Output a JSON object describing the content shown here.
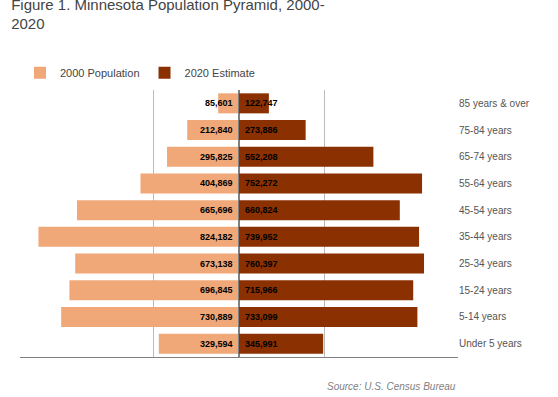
{
  "chart_data": {
    "type": "bar",
    "orientation": "horizontal",
    "title": "Figure 1. Minnesota Population Pyramid, 2000-\n2020",
    "annotations": [
      "Source: U.S. Census Bureau"
    ],
    "categories": [
      "Under 5 years",
      "5-14 years",
      "15-24 years",
      "25-34 years",
      "35-44 years",
      "45-54 years",
      "55-64 years",
      "65-74 years",
      "75-84 years",
      "85 years & over"
    ],
    "series": [
      {
        "name": "2000 Population",
        "color": "#F0A878",
        "values": [
          329594,
          730889,
          696845,
          673138,
          824182,
          665696,
          404869,
          295825,
          212840,
          85601
        ],
        "value_labels": [
          "329,594",
          "730,889",
          "696,845",
          "673,138",
          "824,182",
          "665,696",
          "404,869",
          "295,825",
          "212,840",
          "85,601"
        ]
      },
      {
        "name": "2020 Estimate",
        "color": "#8B3000",
        "values": [
          345991,
          733099,
          715966,
          760397,
          739952,
          660824,
          752272,
          552208,
          273886,
          122747
        ],
        "value_labels": [
          "345,991",
          "733,099",
          "715,966",
          "760,397",
          "739,952",
          "660,824",
          "752,272",
          "552,208",
          "273,886",
          "122,747"
        ]
      }
    ],
    "xlim": [
      0,
      900000
    ],
    "xticks": [
      350000
    ],
    "grid": true,
    "tick_labels": "y",
    "data_labels": true,
    "legend": "upper left"
  }
}
